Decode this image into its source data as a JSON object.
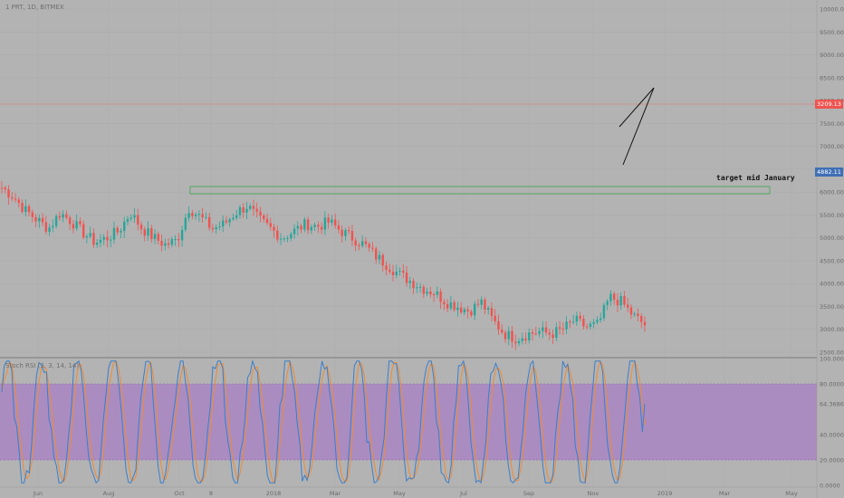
{
  "header": {
    "symbol_text": "1 PRT, 1D, BITMEX"
  },
  "price_tags": {
    "current": "3209.13",
    "level": "4882.11"
  },
  "annotation": "target mid January",
  "stoch": {
    "label": "Stoch RSI (3, 3, 14, 14)",
    "value": "64.3686"
  },
  "colors": {
    "background": "#b3b3b3",
    "up_candle": "#26a69a",
    "down_candle": "#ef5350",
    "zone_border": "#3aa64a",
    "stoch_band": "#a87fc4",
    "stoch_k": "#3c7fc9",
    "stoch_d": "#f28a30"
  },
  "chart_data": [
    {
      "type": "candlestick",
      "symbol": "1 PRT, 1D, BITMEX",
      "x_tick_labels": [
        "Jun",
        "Aug",
        "Oct",
        "8",
        "2018",
        "Mar",
        "May",
        "Jul",
        "Sep",
        "Nov",
        "2019",
        "Mar",
        "May"
      ],
      "y_tick_labels": [
        "2500.00",
        "3000.00",
        "3500.00",
        "4000.00",
        "4500.00",
        "5000.00",
        "5500.00",
        "6000.00",
        "6500.00",
        "7000.00",
        "7500.00",
        "8000.00",
        "8500.00",
        "9000.00",
        "9500.00",
        "10000.00"
      ],
      "ylim": [
        2400,
        10200
      ],
      "current_price": 3209.13,
      "marked_level": 4882.11,
      "trend_path": [
        6100,
        5900,
        5600,
        5400,
        5200,
        5550,
        5350,
        5100,
        4900,
        5000,
        5150,
        5550,
        5200,
        5000,
        4850,
        4950,
        5650,
        5450,
        5200,
        5300,
        5550,
        5700,
        5400,
        5200,
        5000,
        5150,
        5300,
        5250,
        5350,
        5150,
        5000,
        4850,
        4600,
        4400,
        4200,
        4050,
        3900,
        3800,
        3600,
        3500,
        3400,
        3600,
        3200,
        2900,
        2800,
        2900,
        2950,
        2900,
        3000,
        3200,
        3050,
        3100,
        3700,
        3600,
        3300,
        3100
      ],
      "annotation": "target mid January"
    },
    {
      "type": "line",
      "name": "Stoch RSI (3, 3, 14, 14)",
      "ylim": [
        0,
        100
      ],
      "y_tick_labels": [
        "100.0000",
        "80.0000",
        "64.3686",
        "40.0000",
        "20.0000",
        "0.0000"
      ],
      "band": [
        20,
        80
      ],
      "last_value": 64.3686
    }
  ]
}
